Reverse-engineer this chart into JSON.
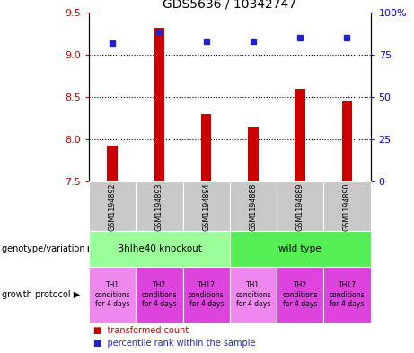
{
  "title": "GDS5636 / 10342747",
  "samples": [
    "GSM1194892",
    "GSM1194893",
    "GSM1194894",
    "GSM1194888",
    "GSM1194889",
    "GSM1194890"
  ],
  "transformed_counts": [
    7.93,
    9.32,
    8.3,
    8.15,
    8.6,
    8.45
  ],
  "percentile_ranks": [
    82,
    88,
    83,
    83,
    85,
    85
  ],
  "ylim_left": [
    7.5,
    9.5
  ],
  "ylim_right": [
    0,
    100
  ],
  "yticks_left": [
    7.5,
    8.0,
    8.5,
    9.0,
    9.5
  ],
  "yticks_right": [
    0,
    25,
    50,
    75,
    100
  ],
  "bar_color": "#cc0000",
  "dot_color": "#2222cc",
  "bg_color": "#c8c8c8",
  "genotype_groups": [
    {
      "label": "Bhlhe40 knockout",
      "span": [
        0,
        3
      ],
      "color": "#99ff99"
    },
    {
      "label": "wild type",
      "span": [
        3,
        6
      ],
      "color": "#55ee55"
    }
  ],
  "growth_protocols": [
    {
      "label": "TH1\nconditions\nfor 4 days",
      "color": "#ee88ee"
    },
    {
      "label": "TH2\nconditions\nfor 4 days",
      "color": "#dd44dd"
    },
    {
      "label": "TH17\nconditions\nfor 4 days",
      "color": "#dd44dd"
    },
    {
      "label": "TH1\nconditions\nfor 4 days",
      "color": "#ee88ee"
    },
    {
      "label": "TH2\nconditions\nfor 4 days",
      "color": "#dd44dd"
    },
    {
      "label": "TH17\nconditions\nfor 4 days",
      "color": "#dd44dd"
    }
  ],
  "legend_red_label": "transformed count",
  "legend_blue_label": "percentile rank within the sample",
  "genotype_label": "genotype/variation",
  "growth_label": "growth protocol"
}
